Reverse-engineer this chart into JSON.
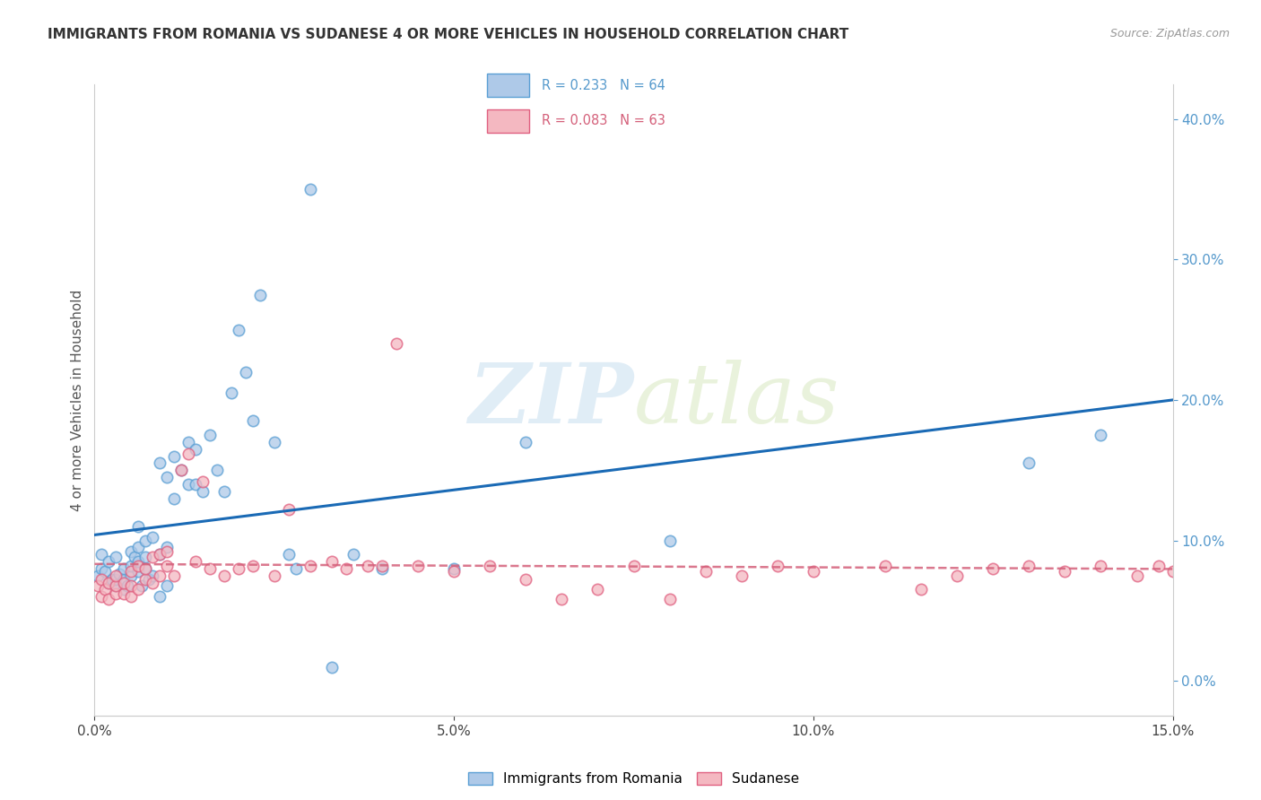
{
  "title": "IMMIGRANTS FROM ROMANIA VS SUDANESE 4 OR MORE VEHICLES IN HOUSEHOLD CORRELATION CHART",
  "source": "Source: ZipAtlas.com",
  "ylabel": "4 or more Vehicles in Household",
  "xlim": [
    0.0,
    0.15
  ],
  "ylim": [
    -0.025,
    0.425
  ],
  "yticks": [
    0.0,
    0.1,
    0.2,
    0.3,
    0.4
  ],
  "xticks": [
    0.0,
    0.05,
    0.1,
    0.15
  ],
  "romania_R": 0.233,
  "romania_N": 64,
  "sudanese_R": 0.083,
  "sudanese_N": 63,
  "romania_color": "#aec9e8",
  "romania_edge": "#5a9fd4",
  "sudanese_color": "#f4b8c1",
  "sudanese_edge": "#e06080",
  "trend_romania_color": "#1a6ab5",
  "trend_sudanese_color": "#d4607a",
  "right_axis_color": "#5599cc",
  "background_color": "#ffffff",
  "grid_color": "#e0e0e0",
  "romania_x": [
    0.0005,
    0.001,
    0.001,
    0.0015,
    0.002,
    0.002,
    0.0025,
    0.003,
    0.003,
    0.003,
    0.0035,
    0.004,
    0.004,
    0.004,
    0.0045,
    0.005,
    0.005,
    0.005,
    0.0055,
    0.006,
    0.006,
    0.006,
    0.006,
    0.0065,
    0.007,
    0.007,
    0.007,
    0.0075,
    0.008,
    0.008,
    0.009,
    0.009,
    0.009,
    0.01,
    0.01,
    0.01,
    0.011,
    0.011,
    0.012,
    0.013,
    0.013,
    0.014,
    0.014,
    0.015,
    0.016,
    0.017,
    0.018,
    0.019,
    0.02,
    0.021,
    0.022,
    0.023,
    0.025,
    0.027,
    0.028,
    0.03,
    0.033,
    0.036,
    0.04,
    0.05,
    0.06,
    0.08,
    0.13,
    0.14
  ],
  "romania_y": [
    0.075,
    0.08,
    0.09,
    0.078,
    0.07,
    0.085,
    0.072,
    0.068,
    0.072,
    0.088,
    0.076,
    0.065,
    0.072,
    0.08,
    0.068,
    0.075,
    0.082,
    0.092,
    0.088,
    0.078,
    0.085,
    0.095,
    0.11,
    0.068,
    0.08,
    0.088,
    0.1,
    0.072,
    0.075,
    0.102,
    0.09,
    0.06,
    0.155,
    0.095,
    0.145,
    0.068,
    0.13,
    0.16,
    0.15,
    0.14,
    0.17,
    0.14,
    0.165,
    0.135,
    0.175,
    0.15,
    0.135,
    0.205,
    0.25,
    0.22,
    0.185,
    0.275,
    0.17,
    0.09,
    0.08,
    0.35,
    0.01,
    0.09,
    0.08,
    0.08,
    0.17,
    0.1,
    0.155,
    0.175
  ],
  "sudanese_x": [
    0.0005,
    0.001,
    0.001,
    0.0015,
    0.002,
    0.002,
    0.003,
    0.003,
    0.003,
    0.004,
    0.004,
    0.005,
    0.005,
    0.005,
    0.006,
    0.006,
    0.007,
    0.007,
    0.008,
    0.008,
    0.009,
    0.009,
    0.01,
    0.01,
    0.011,
    0.012,
    0.013,
    0.014,
    0.015,
    0.016,
    0.018,
    0.02,
    0.022,
    0.025,
    0.027,
    0.03,
    0.033,
    0.035,
    0.038,
    0.04,
    0.042,
    0.045,
    0.05,
    0.055,
    0.06,
    0.065,
    0.07,
    0.075,
    0.08,
    0.085,
    0.09,
    0.095,
    0.1,
    0.11,
    0.115,
    0.12,
    0.125,
    0.13,
    0.135,
    0.14,
    0.145,
    0.148,
    0.15
  ],
  "sudanese_y": [
    0.068,
    0.072,
    0.06,
    0.065,
    0.058,
    0.07,
    0.062,
    0.068,
    0.075,
    0.062,
    0.07,
    0.06,
    0.068,
    0.078,
    0.065,
    0.082,
    0.072,
    0.08,
    0.07,
    0.088,
    0.075,
    0.09,
    0.082,
    0.092,
    0.075,
    0.15,
    0.162,
    0.085,
    0.142,
    0.08,
    0.075,
    0.08,
    0.082,
    0.075,
    0.122,
    0.082,
    0.085,
    0.08,
    0.082,
    0.082,
    0.24,
    0.082,
    0.078,
    0.082,
    0.072,
    0.058,
    0.065,
    0.082,
    0.058,
    0.078,
    0.075,
    0.082,
    0.078,
    0.082,
    0.065,
    0.075,
    0.08,
    0.082,
    0.078,
    0.082,
    0.075,
    0.082,
    0.078
  ],
  "watermark_zip": "ZIP",
  "watermark_atlas": "atlas",
  "legend_romania_label": "Immigrants from Romania",
  "legend_sudanese_label": "Sudanese"
}
